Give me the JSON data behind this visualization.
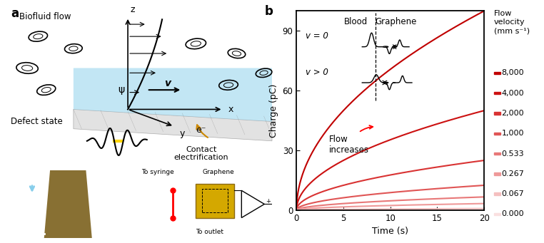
{
  "xlabel": "Time (s)",
  "ylabel": "Charge (pC)",
  "xlim": [
    0,
    20
  ],
  "ylim": [
    0,
    100
  ],
  "xticks": [
    0,
    5,
    10,
    15,
    20
  ],
  "yticks": [
    0,
    30,
    60,
    90
  ],
  "flow_velocities": [
    8.0,
    4.0,
    2.0,
    1.0,
    0.533,
    0.267,
    0.067,
    0.0
  ],
  "legend_labels": [
    "8,000",
    "4,000",
    "2,000",
    "1,000",
    "0.533",
    "0.267",
    "0.067",
    "0.000"
  ],
  "colors": [
    "#c00000",
    "#cc1111",
    "#d93333",
    "#e05555",
    "#e87878",
    "#ef9999",
    "#f5bfbf",
    "#fae0e0"
  ],
  "annotation_text": "Flow\nincreases",
  "inset_title1": "Blood",
  "inset_title2": "Graphene",
  "inset_v0": "v = 0",
  "inset_v1": "v > 0",
  "background_color": "#ffffff",
  "label_a": "a",
  "label_b": "b",
  "legend_title": "Flow\nvelocity\n(mm s⁻¹)"
}
